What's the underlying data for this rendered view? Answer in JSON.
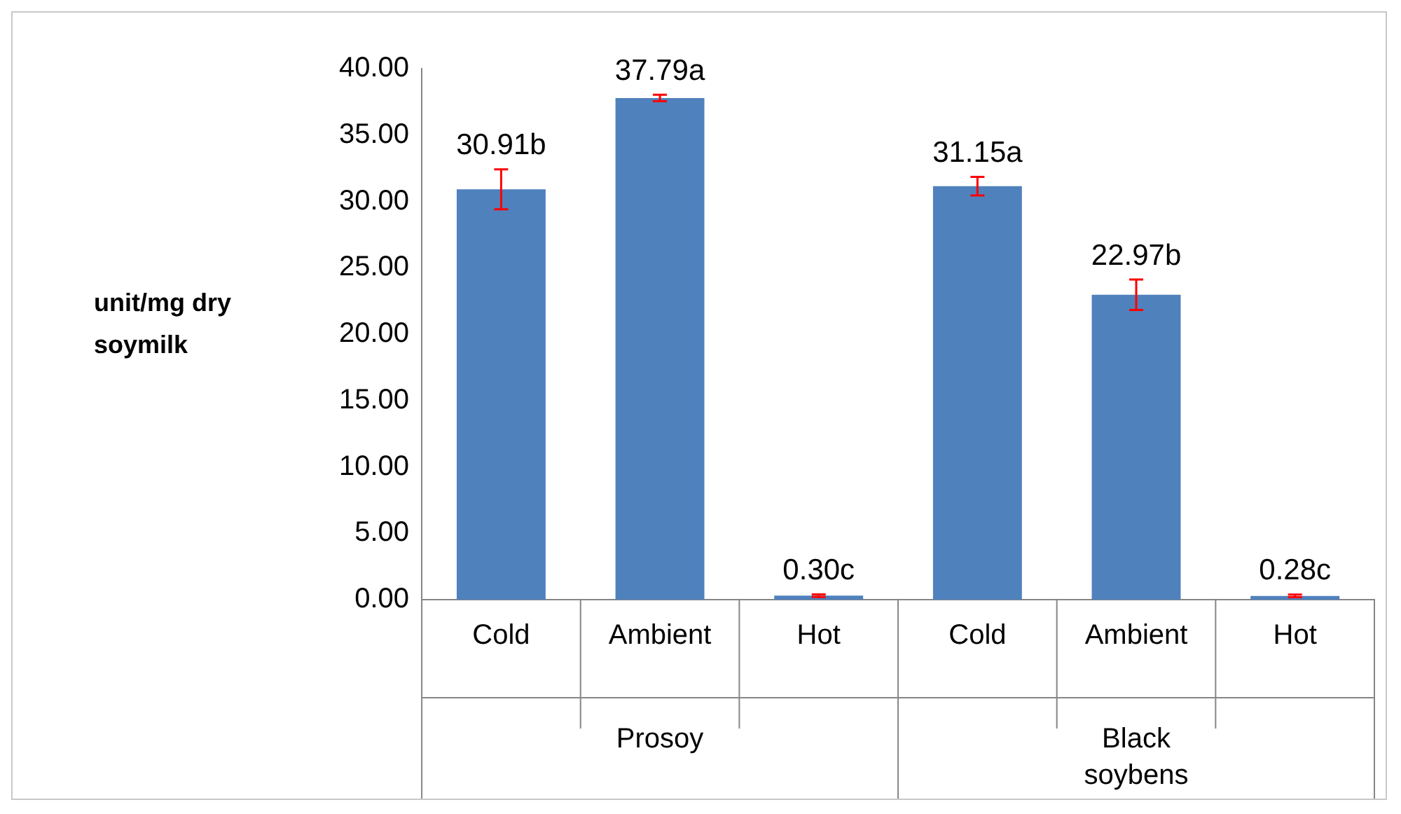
{
  "chart_data": {
    "type": "bar",
    "ylabel": "unit/mg dry soymilk",
    "categories": [
      "Cold",
      "Ambient",
      "Hot",
      "Cold",
      "Ambient",
      "Hot"
    ],
    "values": [
      30.91,
      37.79,
      0.3,
      31.15,
      22.97,
      0.28
    ],
    "errors": [
      1.5,
      0.25,
      0.1,
      0.7,
      1.15,
      0.1
    ],
    "value_labels": [
      "30.91b",
      "37.79a",
      "0.30c",
      "31.15a",
      "22.97b",
      "0.28c"
    ],
    "color": "#4f81bd",
    "annotations": [
      "Prosoy",
      "Black soybens"
    ],
    "ylim": [
      0,
      40
    ],
    "yticks": [
      {
        "value": 0,
        "label": "0.00"
      },
      {
        "value": 5,
        "label": "5.00"
      },
      {
        "value": 10,
        "label": "10.00"
      },
      {
        "value": 15,
        "label": "15.00"
      },
      {
        "value": 20,
        "label": "20.00"
      },
      {
        "value": 25,
        "label": "25.00"
      },
      {
        "value": 30,
        "label": "30.00"
      },
      {
        "value": 35,
        "label": "35.00"
      },
      {
        "value": 40,
        "label": "40.00"
      }
    ],
    "grid": false,
    "legend": false
  }
}
